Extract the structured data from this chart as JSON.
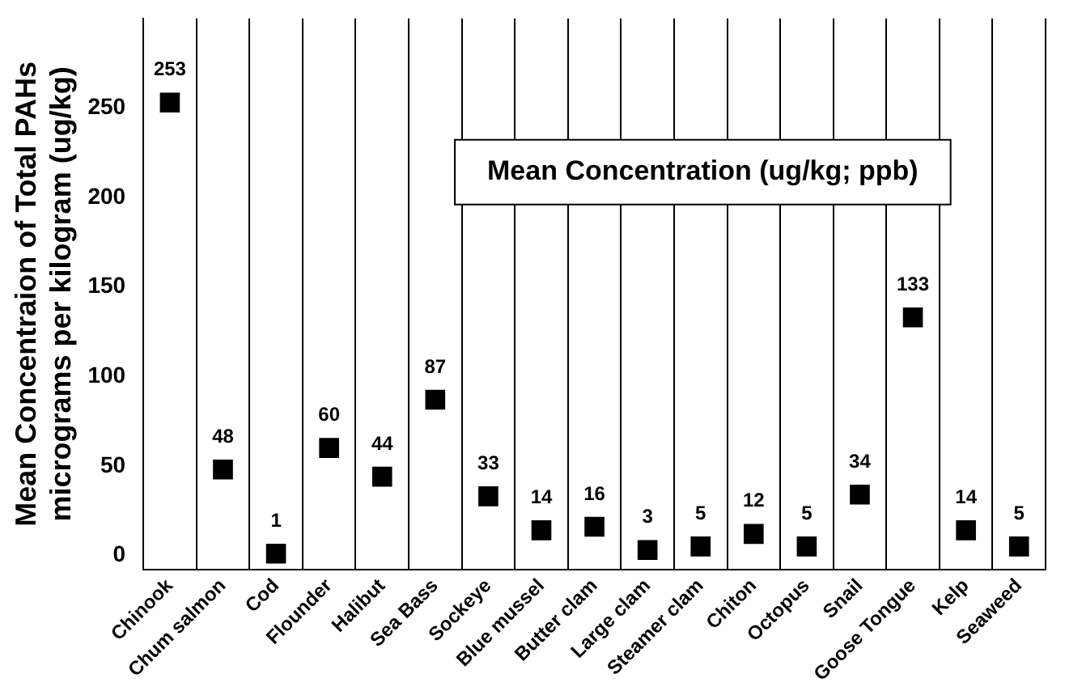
{
  "chart_data": {
    "type": "scatter",
    "ylabel": "Mean Concentraion of Total PAHs\nmicrograms per kilogram (ug/kg)",
    "categories": [
      "Chinook",
      "Chum salmon",
      "Cod",
      "Flounder",
      "Halibut",
      "Sea Bass",
      "Sockeye",
      "Blue mussel",
      "Butter clam",
      "Large clam",
      "Steamer clam",
      "Chiton",
      "Octopus",
      "Snail",
      "Goose Tongue",
      "Kelp",
      "Seaweed"
    ],
    "values": [
      253,
      48,
      1,
      60,
      44,
      87,
      33,
      14,
      16,
      3,
      5,
      12,
      5,
      34,
      133,
      14,
      5
    ],
    "color": "#000000",
    "marker": "square",
    "data_labels": true,
    "ylim": [
      -8,
      300
    ],
    "yticks": [
      0,
      50,
      100,
      150,
      200,
      250
    ],
    "grid": "x",
    "annotations": [
      "Mean Concentration (ug/kg; ppb)"
    ]
  }
}
